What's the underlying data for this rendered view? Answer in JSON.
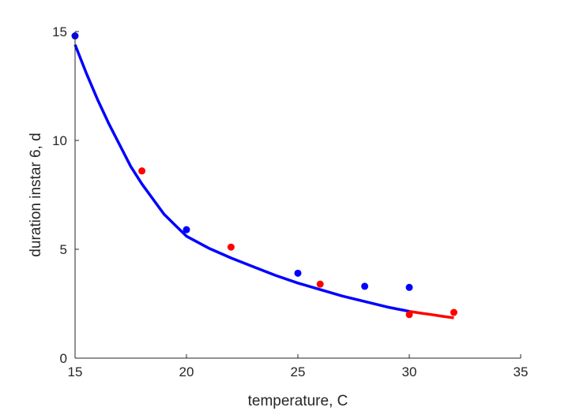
{
  "chart_data": {
    "type": "scatter",
    "title": "",
    "xlabel": "temperature, C",
    "ylabel": "duration instar 6, d",
    "xlim": [
      15,
      35
    ],
    "ylim": [
      0,
      15
    ],
    "xticks": [
      15,
      20,
      25,
      30,
      35
    ],
    "yticks": [
      0,
      5,
      10,
      15
    ],
    "grid": false,
    "legend": "none",
    "colors": {
      "blue": "#0000ff",
      "red": "#ff0000",
      "axis": "#262626"
    },
    "series": [
      {
        "color": "blue",
        "kind": "points",
        "x": [
          15,
          20,
          25,
          28,
          30
        ],
        "y": [
          14.8,
          5.9,
          3.9,
          3.3,
          3.25
        ]
      },
      {
        "color": "red",
        "kind": "points",
        "x": [
          18,
          22,
          26,
          30,
          32
        ],
        "y": [
          8.6,
          5.1,
          3.4,
          2.0,
          2.1
        ]
      },
      {
        "color": "blue",
        "kind": "line",
        "x": [
          15,
          15.5,
          16,
          16.5,
          17,
          17.5,
          18,
          18.5,
          19,
          19.5,
          20,
          21,
          22,
          23,
          24,
          25,
          26,
          27,
          28,
          29,
          30
        ],
        "y": [
          14.4,
          13.1,
          11.9,
          10.8,
          9.8,
          8.8,
          8.0,
          7.3,
          6.6,
          6.1,
          5.6,
          5.05,
          4.6,
          4.2,
          3.8,
          3.45,
          3.15,
          2.85,
          2.6,
          2.35,
          2.15
        ]
      },
      {
        "color": "red",
        "kind": "line",
        "x": [
          30,
          30.5,
          31,
          31.5,
          32
        ],
        "y": [
          2.15,
          2.07,
          2.0,
          1.92,
          1.85
        ]
      }
    ]
  }
}
